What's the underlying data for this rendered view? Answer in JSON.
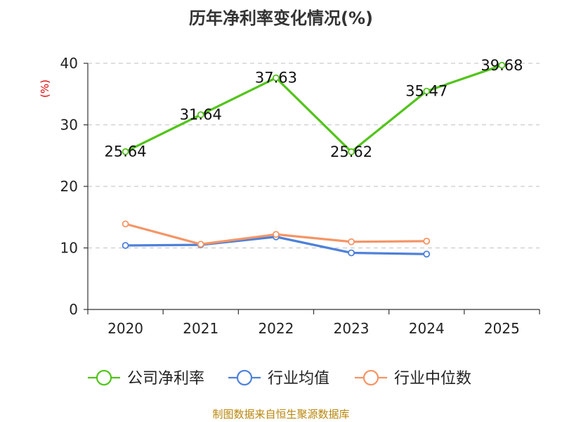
{
  "chart_data": {
    "type": "line",
    "title": "历年净利率变化情况(%)",
    "ylabel": "(%)",
    "xlabel": "",
    "ylim": [
      0,
      40
    ],
    "yticks": [
      0,
      10,
      20,
      30,
      40
    ],
    "grid": true,
    "categories": [
      "2020",
      "2021",
      "2022",
      "2023",
      "2024",
      "2025"
    ],
    "series": [
      {
        "name": "公司净利率",
        "color": "#52c41a",
        "values": [
          25.64,
          31.64,
          37.63,
          25.62,
          35.47,
          39.68
        ],
        "labels": [
          "25.64",
          "31.64",
          "37.63",
          "25.62",
          "35.47",
          "39.68"
        ]
      },
      {
        "name": "行业均值",
        "color": "#4f81d9",
        "values": [
          10.4,
          10.5,
          11.8,
          9.2,
          9.0,
          null
        ]
      },
      {
        "name": "行业中位数",
        "color": "#f49566",
        "values": [
          13.9,
          10.6,
          12.2,
          11.0,
          11.1,
          null
        ]
      }
    ],
    "legend_position": "bottom"
  },
  "source": "制图数据来自恒生聚源数据库"
}
